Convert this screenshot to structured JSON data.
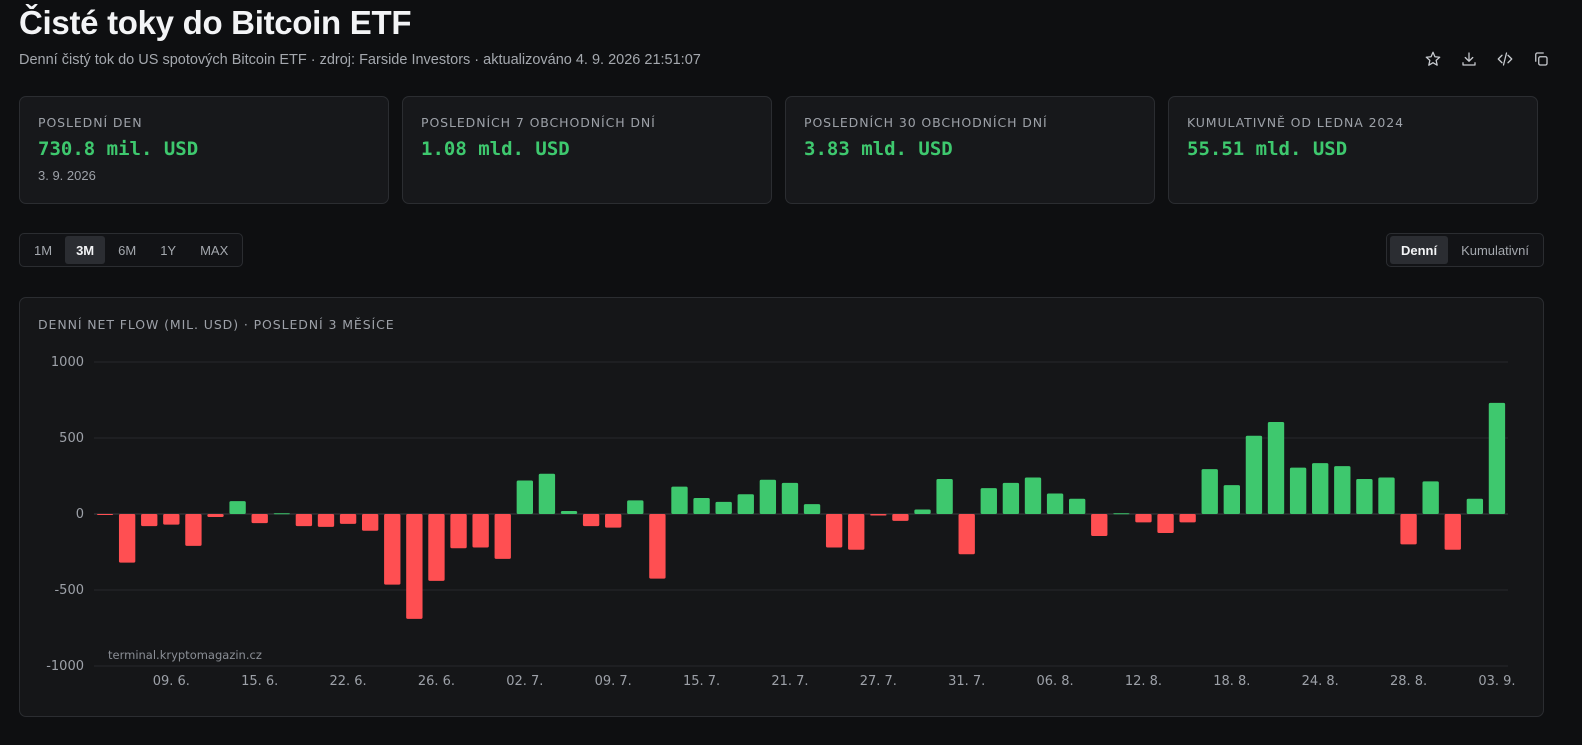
{
  "header": {
    "title": "Čisté toky do Bitcoin ETF",
    "subtitle": "Denní čistý tok do US spotových Bitcoin ETF · zdroj: Farside Investors · aktualizováno 4. 9. 2026 21:51:07"
  },
  "toolbar": {
    "icons": [
      "star-icon",
      "download-icon",
      "code-icon",
      "copy-icon"
    ]
  },
  "cards": [
    {
      "label": "POSLEDNÍ DEN",
      "value": "730.8 mil. USD",
      "sub": "3. 9. 2026"
    },
    {
      "label": "POSLEDNÍCH 7 OBCHODNÍCH DNÍ",
      "value": "1.08 mld. USD",
      "sub": ""
    },
    {
      "label": "POSLEDNÍCH 30 OBCHODNÍCH DNÍ",
      "value": "3.83 mld. USD",
      "sub": ""
    },
    {
      "label": "KUMULATIVNĚ OD LEDNA 2024",
      "value": "55.51 mld. USD",
      "sub": ""
    }
  ],
  "range": {
    "options": [
      "1M",
      "3M",
      "6M",
      "1Y",
      "MAX"
    ],
    "active": "3M"
  },
  "mode": {
    "options": [
      "Denní",
      "Kumulativní"
    ],
    "active": "Denní"
  },
  "chart_title": "DENNÍ NET FLOW (MIL. USD) · POSLEDNÍ 3 MĚSÍCE",
  "watermark": "terminal.kryptomagazin.cz",
  "colors": {
    "positive": "#3ec86e",
    "negative": "#ff4f52",
    "background": "#0e0f11"
  },
  "chart_data": {
    "type": "bar",
    "ylim": [
      -1000,
      1000
    ],
    "yticks": [
      1000,
      500,
      0,
      -500,
      -1000
    ],
    "xtick_labels": [
      "09. 6.",
      "15. 6.",
      "22. 6.",
      "26. 6.",
      "02. 7.",
      "09. 7.",
      "15. 7.",
      "21. 7.",
      "27. 7.",
      "31. 7.",
      "06. 8.",
      "12. 8.",
      "18. 8.",
      "24. 8.",
      "28. 8.",
      "03. 9."
    ],
    "xtick_positions": [
      3,
      7,
      11,
      15,
      19,
      23,
      27,
      31,
      35,
      39,
      43,
      47,
      51,
      55,
      59,
      63
    ],
    "values": [
      -5,
      -320,
      -80,
      -70,
      -210,
      -20,
      85,
      -60,
      5,
      -80,
      -85,
      -65,
      -110,
      -465,
      -690,
      -440,
      -225,
      -220,
      -295,
      220,
      265,
      20,
      -80,
      -90,
      90,
      -425,
      180,
      105,
      80,
      130,
      225,
      205,
      65,
      -220,
      -235,
      -10,
      -45,
      30,
      230,
      -265,
      170,
      205,
      240,
      135,
      100,
      -145,
      5,
      -55,
      -125,
      -55,
      295,
      190,
      515,
      605,
      305,
      335,
      315,
      230,
      240,
      -200,
      215,
      -235,
      100,
      731
    ]
  }
}
